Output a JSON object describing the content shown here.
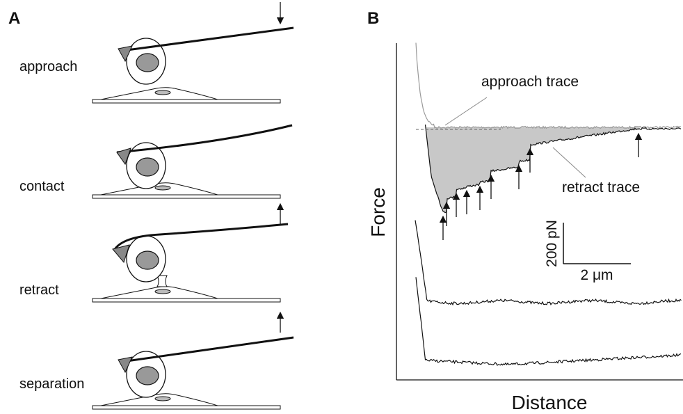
{
  "panel_a": {
    "label": "A",
    "steps": [
      "approach",
      "contact",
      "retract",
      "separation"
    ]
  },
  "panel_b": {
    "label": "B",
    "approach_label": "approach trace",
    "retract_label": "retract trace",
    "y_axis_label": "Force",
    "x_axis_label": "Distance",
    "scale_force": "200 pN",
    "scale_distance": "2 μm"
  }
}
